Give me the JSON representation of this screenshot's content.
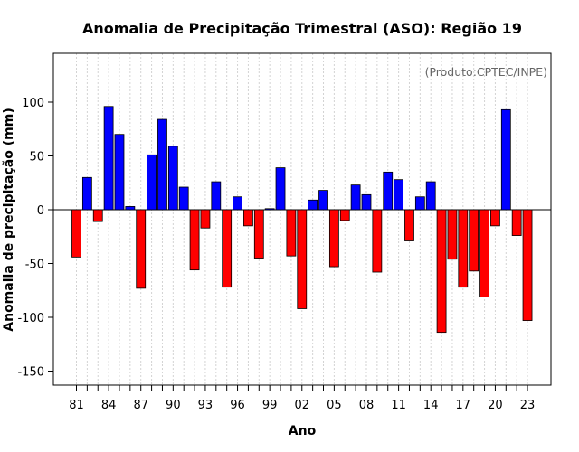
{
  "chart_data": {
    "type": "bar",
    "title": "Anomalia de Precipitação Trimestral (ASO): Região 19",
    "credit": "(Produto:CPTEC/INPE)",
    "xlabel": "Ano",
    "ylabel": "Anomalia de precipitação (mm)",
    "ylim": [
      -163,
      145
    ],
    "yticks": [
      -150,
      -100,
      -50,
      0,
      50,
      100
    ],
    "grid": "vertical dotted",
    "x": [
      1981,
      1982,
      1983,
      1984,
      1985,
      1986,
      1987,
      1988,
      1989,
      1990,
      1991,
      1992,
      1993,
      1994,
      1995,
      1996,
      1997,
      1998,
      1999,
      2000,
      2001,
      2002,
      2003,
      2004,
      2005,
      2006,
      2007,
      2008,
      2009,
      2010,
      2011,
      2012,
      2013,
      2014,
      2015,
      2016,
      2017,
      2018,
      2019,
      2020,
      2021,
      2022,
      2023
    ],
    "xtick_labels": [
      "81",
      "84",
      "87",
      "90",
      "93",
      "96",
      "99",
      "02",
      "05",
      "08",
      "11",
      "14",
      "17",
      "20",
      "23"
    ],
    "xtick_years": [
      1981,
      1984,
      1987,
      1990,
      1993,
      1996,
      1999,
      2002,
      2005,
      2008,
      2011,
      2014,
      2017,
      2020,
      2023
    ],
    "values": [
      -44,
      30,
      -11,
      96,
      70,
      3,
      -73,
      51,
      84,
      59,
      21,
      -56,
      -17,
      26,
      -72,
      12,
      -15,
      -45,
      1,
      39,
      -43,
      -92,
      9,
      18,
      -53,
      -10,
      23,
      14,
      -58,
      35,
      28,
      -29,
      12,
      26,
      -114,
      -46,
      -72,
      -57,
      -81,
      -15,
      93,
      -24,
      -103
    ],
    "colors": {
      "positive": "#0000ff",
      "negative": "#ff0000",
      "edge": "#000000",
      "grid": "#d3d3d3",
      "zero_line": "#000000"
    }
  }
}
